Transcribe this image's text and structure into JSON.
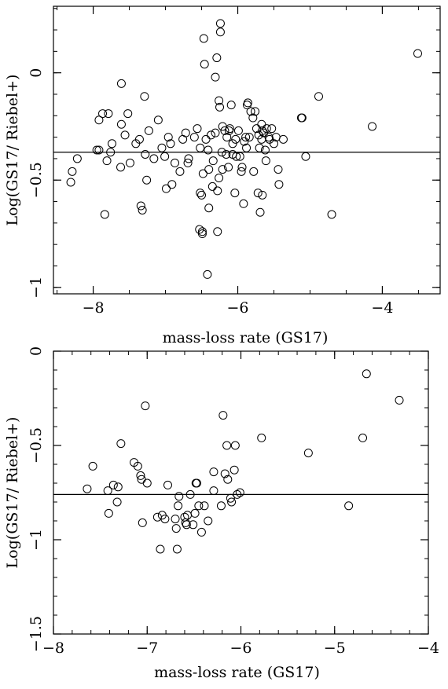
{
  "chart_data": [
    {
      "type": "scatter",
      "xlabel": "mass-loss rate (GS17)",
      "ylabel": "Log(GS17/ Riebel+)",
      "xlim": [
        -8.55,
        -3.2
      ],
      "ylim": [
        -1.03,
        0.31
      ],
      "xticks": [
        -8,
        -6,
        -4
      ],
      "xtick_labels": [
        "−8",
        "−6",
        "−4"
      ],
      "yticks": [
        -1,
        -0.5,
        0
      ],
      "ytick_labels": [
        "−1",
        "−0.5",
        "0"
      ],
      "hline": -0.37,
      "points": [
        [
          -8.31,
          -0.51
        ],
        [
          -8.29,
          -0.46
        ],
        [
          -8.22,
          -0.4
        ],
        [
          -7.95,
          -0.36
        ],
        [
          -7.92,
          -0.36
        ],
        [
          -7.92,
          -0.22
        ],
        [
          -7.87,
          -0.19
        ],
        [
          -7.84,
          -0.66
        ],
        [
          -7.81,
          -0.41
        ],
        [
          -7.79,
          -0.19
        ],
        [
          -7.76,
          -0.37
        ],
        [
          -7.74,
          -0.33
        ],
        [
          -7.62,
          -0.44
        ],
        [
          -7.61,
          -0.05
        ],
        [
          -7.61,
          -0.24
        ],
        [
          -7.56,
          -0.29
        ],
        [
          -7.52,
          -0.19
        ],
        [
          -7.49,
          -0.42
        ],
        [
          -7.41,
          -0.33
        ],
        [
          -7.36,
          -0.31
        ],
        [
          -7.34,
          -0.62
        ],
        [
          -7.32,
          -0.64
        ],
        [
          -7.29,
          -0.11
        ],
        [
          -7.28,
          -0.38
        ],
        [
          -7.26,
          -0.5
        ],
        [
          -7.23,
          -0.27
        ],
        [
          -7.16,
          -0.4
        ],
        [
          -7.1,
          -0.22
        ],
        [
          -7.05,
          -0.35
        ],
        [
          -7.01,
          -0.39
        ],
        [
          -6.99,
          -0.54
        ],
        [
          -6.96,
          -0.3
        ],
        [
          -6.93,
          -0.33
        ],
        [
          -6.91,
          -0.52
        ],
        [
          -6.87,
          -0.42
        ],
        [
          -6.8,
          -0.46
        ],
        [
          -6.76,
          -0.31
        ],
        [
          -6.72,
          -0.28
        ],
        [
          -6.69,
          -0.42
        ],
        [
          -6.68,
          -0.4
        ],
        [
          -6.6,
          -0.3
        ],
        [
          -6.56,
          -0.26
        ],
        [
          -6.53,
          -0.73
        ],
        [
          -6.52,
          -0.56
        ],
        [
          -6.52,
          -0.35
        ],
        [
          -6.5,
          -0.57
        ],
        [
          -6.49,
          -0.75
        ],
        [
          -6.49,
          -0.74
        ],
        [
          -6.48,
          -0.47
        ],
        [
          -6.47,
          0.16
        ],
        [
          -6.46,
          0.04
        ],
        [
          -6.44,
          -0.31
        ],
        [
          -6.42,
          -0.94
        ],
        [
          -6.41,
          -0.36
        ],
        [
          -6.4,
          -0.45
        ],
        [
          -6.4,
          -0.63
        ],
        [
          -6.37,
          -0.29
        ],
        [
          -6.35,
          -0.53
        ],
        [
          -6.34,
          -0.41
        ],
        [
          -6.31,
          -0.02
        ],
        [
          -6.31,
          -0.28
        ],
        [
          -6.29,
          0.07
        ],
        [
          -6.28,
          -0.74
        ],
        [
          -6.28,
          -0.55
        ],
        [
          -6.26,
          -0.13
        ],
        [
          -6.26,
          -0.49
        ],
        [
          -6.25,
          -0.16
        ],
        [
          -6.24,
          0.19
        ],
        [
          -6.24,
          0.23
        ],
        [
          -6.22,
          -0.37
        ],
        [
          -6.21,
          -0.25
        ],
        [
          -6.21,
          -0.45
        ],
        [
          -6.18,
          -0.27
        ],
        [
          -6.16,
          -0.38
        ],
        [
          -6.15,
          -0.3
        ],
        [
          -6.13,
          -0.44
        ],
        [
          -6.12,
          -0.27
        ],
        [
          -6.11,
          -0.26
        ],
        [
          -6.09,
          -0.15
        ],
        [
          -6.07,
          -0.33
        ],
        [
          -6.07,
          -0.38
        ],
        [
          -6.04,
          -0.56
        ],
        [
          -6.03,
          -0.31
        ],
        [
          -6.02,
          -0.39
        ],
        [
          -5.99,
          -0.27
        ],
        [
          -5.97,
          -0.39
        ],
        [
          -5.95,
          -0.46
        ],
        [
          -5.94,
          -0.44
        ],
        [
          -5.92,
          -0.61
        ],
        [
          -5.91,
          -0.32
        ],
        [
          -5.89,
          -0.3
        ],
        [
          -5.88,
          -0.35
        ],
        [
          -5.87,
          -0.15
        ],
        [
          -5.86,
          -0.14
        ],
        [
          -5.84,
          -0.3
        ],
        [
          -5.82,
          -0.18
        ],
        [
          -5.79,
          -0.21
        ],
        [
          -5.78,
          -0.46
        ],
        [
          -5.76,
          -0.18
        ],
        [
          -5.74,
          -0.26
        ],
        [
          -5.72,
          -0.56
        ],
        [
          -5.71,
          -0.29
        ],
        [
          -5.7,
          -0.35
        ],
        [
          -5.69,
          -0.65
        ],
        [
          -5.67,
          -0.31
        ],
        [
          -5.67,
          -0.24
        ],
        [
          -5.66,
          -0.57
        ],
        [
          -5.66,
          -0.27
        ],
        [
          -5.64,
          -0.28
        ],
        [
          -5.62,
          -0.36
        ],
        [
          -5.61,
          -0.41
        ],
        [
          -5.6,
          -0.26
        ],
        [
          -5.57,
          -0.3
        ],
        [
          -5.56,
          -0.31
        ],
        [
          -5.53,
          -0.26
        ],
        [
          -5.5,
          -0.33
        ],
        [
          -5.47,
          -0.3
        ],
        [
          -5.44,
          -0.45
        ],
        [
          -5.43,
          -0.52
        ],
        [
          -5.37,
          -0.31
        ],
        [
          -5.12,
          -0.21
        ],
        [
          -5.11,
          -0.21
        ],
        [
          -5.06,
          -0.39
        ],
        [
          -4.88,
          -0.11
        ],
        [
          -4.7,
          -0.66
        ],
        [
          -4.14,
          -0.25
        ],
        [
          -3.51,
          0.09
        ]
      ]
    },
    {
      "type": "scatter",
      "xlabel": "mass-loss rate (GS17)",
      "ylabel": "Log(GS17/ Riebel+)",
      "xlim": [
        -8.0,
        -4.0
      ],
      "ylim": [
        -1.5,
        0.0
      ],
      "xticks": [
        -8,
        -7,
        -6,
        -5,
        -4
      ],
      "xtick_labels": [
        "−8",
        "−7",
        "−6",
        "−5",
        "−4"
      ],
      "yticks": [
        -1.5,
        -1,
        -0.5,
        0
      ],
      "ytick_labels": [
        "−1.5",
        "−1",
        "−0.5",
        "0"
      ],
      "hline": -0.76,
      "points": [
        [
          -7.64,
          -0.73
        ],
        [
          -7.58,
          -0.61
        ],
        [
          -7.42,
          -0.74
        ],
        [
          -7.41,
          -0.86
        ],
        [
          -7.36,
          -0.71
        ],
        [
          -7.32,
          -0.8
        ],
        [
          -7.31,
          -0.72
        ],
        [
          -7.28,
          -0.49
        ],
        [
          -7.14,
          -0.59
        ],
        [
          -7.1,
          -0.61
        ],
        [
          -7.07,
          -0.66
        ],
        [
          -7.06,
          -0.68
        ],
        [
          -7.05,
          -0.91
        ],
        [
          -7.02,
          -0.29
        ],
        [
          -7.0,
          -0.7
        ],
        [
          -6.89,
          -0.88
        ],
        [
          -6.86,
          -1.05
        ],
        [
          -6.84,
          -0.87
        ],
        [
          -6.81,
          -0.89
        ],
        [
          -6.78,
          -0.71
        ],
        [
          -6.7,
          -0.89
        ],
        [
          -6.69,
          -0.94
        ],
        [
          -6.68,
          -1.05
        ],
        [
          -6.67,
          -0.82
        ],
        [
          -6.66,
          -0.77
        ],
        [
          -6.6,
          -0.88
        ],
        [
          -6.59,
          -0.91
        ],
        [
          -6.58,
          -0.92
        ],
        [
          -6.57,
          -0.87
        ],
        [
          -6.54,
          -0.76
        ],
        [
          -6.51,
          -0.92
        ],
        [
          -6.49,
          -0.86
        ],
        [
          -6.48,
          -0.7
        ],
        [
          -6.47,
          -0.7
        ],
        [
          -6.45,
          -0.82
        ],
        [
          -6.42,
          -0.96
        ],
        [
          -6.39,
          -0.82
        ],
        [
          -6.35,
          -0.9
        ],
        [
          -6.29,
          -0.64
        ],
        [
          -6.29,
          -0.74
        ],
        [
          -6.21,
          -0.82
        ],
        [
          -6.19,
          -0.34
        ],
        [
          -6.17,
          -0.65
        ],
        [
          -6.15,
          -0.5
        ],
        [
          -6.14,
          -0.68
        ],
        [
          -6.11,
          -0.78
        ],
        [
          -6.1,
          -0.8
        ],
        [
          -6.07,
          -0.63
        ],
        [
          -6.06,
          -0.5
        ],
        [
          -6.04,
          -0.76
        ],
        [
          -6.01,
          -0.75
        ],
        [
          -5.78,
          -0.46
        ],
        [
          -5.28,
          -0.54
        ],
        [
          -4.85,
          -0.82
        ],
        [
          -4.7,
          -0.46
        ],
        [
          -4.66,
          -0.12
        ],
        [
          -4.31,
          -0.26
        ]
      ]
    }
  ]
}
